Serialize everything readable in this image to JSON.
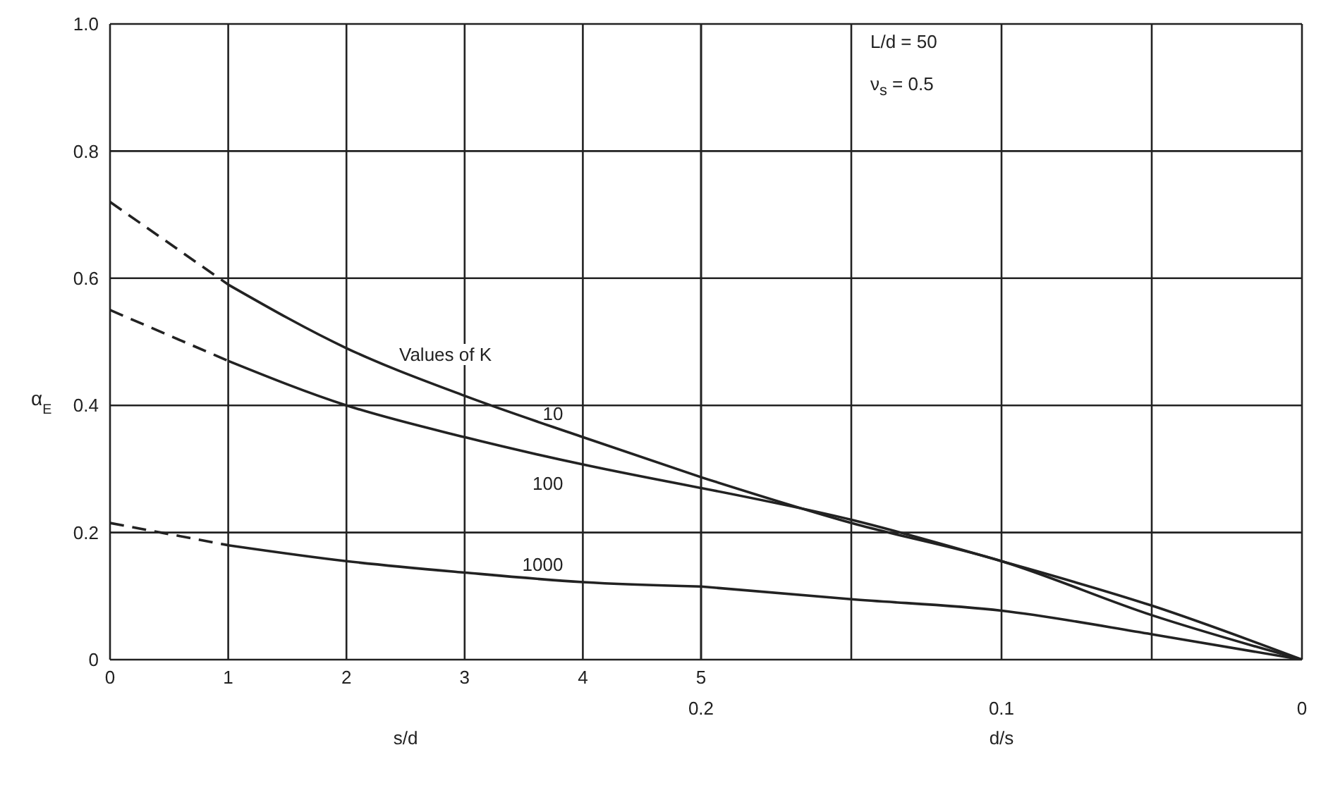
{
  "chart_data": [
    {
      "type": "line",
      "xlabel": "s/d",
      "ylabel": "α$_{E}$",
      "annotations": [
        "Values of K"
      ],
      "xlim": [
        0,
        5
      ],
      "xticks": [
        0,
        1,
        2,
        3,
        4,
        5
      ],
      "ylim": [
        0,
        1
      ],
      "yticks": [
        0,
        0.2,
        0.4,
        0.6,
        0.8,
        {
          "value": 1,
          "label": "1.0"
        }
      ],
      "grid": true,
      "marker": "none",
      "line_style": "solid",
      "series": [
        {
          "name": "10",
          "color": "#222222",
          "x": [
            1,
            2,
            3,
            4,
            5
          ],
          "values": [
            0.59,
            0.49,
            0.415,
            0.35,
            0.287
          ]
        },
        {
          "name": "100",
          "color": "#222222",
          "x": [
            1,
            2,
            3,
            4,
            5
          ],
          "values": [
            0.47,
            0.4,
            0.35,
            0.307,
            0.27
          ]
        },
        {
          "name": "1000",
          "color": "#222222",
          "x": [
            1,
            2,
            3,
            4,
            5
          ],
          "values": [
            0.18,
            0.155,
            0.137,
            0.122,
            0.115
          ]
        },
        {
          "color": "#222222",
          "x": [
            0,
            1
          ],
          "values": [
            0.72,
            0.59
          ],
          "line_style": "dashed"
        },
        {
          "color": "#222222",
          "x": [
            0,
            1
          ],
          "values": [
            0.55,
            0.47
          ],
          "line_style": "dashed"
        },
        {
          "color": "#222222",
          "x": [
            0,
            1
          ],
          "values": [
            0.215,
            0.18
          ],
          "line_style": "dashed"
        }
      ]
    },
    {
      "type": "line",
      "xlabel": "d/s",
      "annotations": [
        "L/d = 50",
        "ν$_{s}$ = 0.5"
      ],
      "xlim": [
        0.2,
        0
      ],
      "xticks": [
        0.2,
        {
          "value": 0.15,
          "label": null
        },
        0.1,
        {
          "value": 0.05,
          "label": null
        },
        0
      ],
      "ylim": [
        0,
        1
      ],
      "yticks": [
        0,
        0.2,
        0.4,
        0.6,
        0.8,
        1
      ],
      "tick_labels": "x",
      "grid": true,
      "marker": "none",
      "line_style": "solid",
      "series": [
        {
          "color": "#222222",
          "x": [
            0.2,
            0.15,
            0.1,
            0.05,
            0
          ],
          "values": [
            0.287,
            0.215,
            0.155,
            0.07,
            0
          ]
        },
        {
          "color": "#222222",
          "x": [
            0.2,
            0.15,
            0.1,
            0.05,
            0
          ],
          "values": [
            0.27,
            0.22,
            0.155,
            0.085,
            0
          ]
        },
        {
          "color": "#222222",
          "x": [
            0.2,
            0.15,
            0.1,
            0.05,
            0
          ],
          "values": [
            0.115,
            0.095,
            0.077,
            0.04,
            0
          ]
        }
      ]
    }
  ]
}
